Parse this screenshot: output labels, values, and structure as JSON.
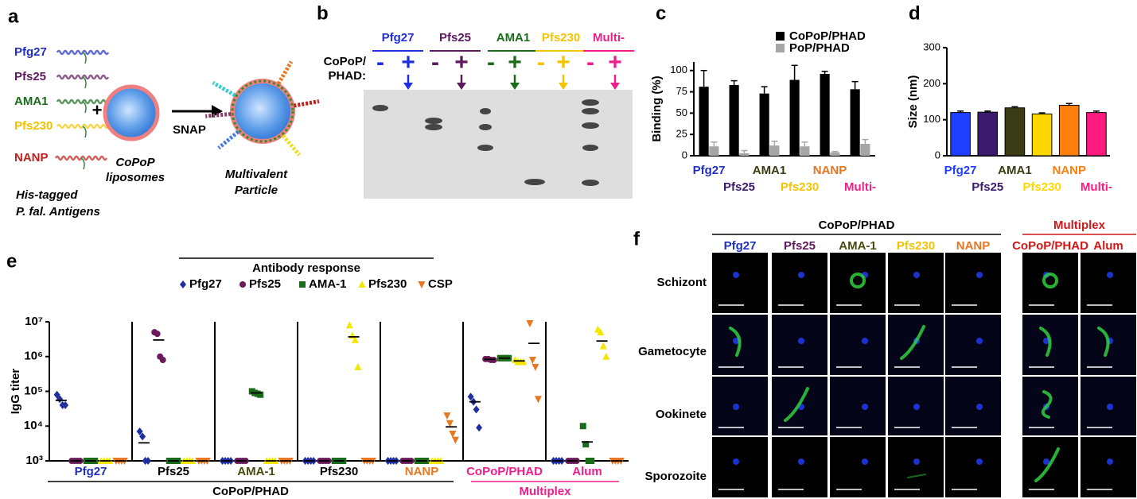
{
  "panel_a": {
    "letter": "a",
    "antigens": [
      "Pfg27",
      "Pfs25",
      "AMA1",
      "Pfs230",
      "NANP"
    ],
    "antigen_colors": [
      "#1f2fbf",
      "#5c1a5c",
      "#1a6b1a",
      "#f2c200",
      "#c0201a"
    ],
    "plus": "+",
    "liposome": [
      "CoPoP",
      "liposomes"
    ],
    "arrow_label": "SNAP",
    "particle": [
      "Multivalent",
      "Particle"
    ],
    "caption": [
      "His-tagged",
      "P. fal. Antigens"
    ]
  },
  "panel_b": {
    "letter": "b",
    "lanes": [
      "Pfg27",
      "Pfs25",
      "AMA1",
      "Pfs230",
      "Multi-"
    ],
    "lane_colors": [
      "#1f2fdf",
      "#5c1a5c",
      "#1a6b1a",
      "#f5c400",
      "#ee1e8c"
    ],
    "row_label": [
      "CoPoP/",
      "PHAD:"
    ],
    "signs": [
      "-",
      "+"
    ]
  },
  "panel_f": {
    "letter": "f",
    "groups": [
      {
        "title": "CoPoP/PHAD",
        "color": "#000000",
        "columns": [
          "Pfg27",
          "Pfs25",
          "AMA-1",
          "Pfs230",
          "NANP"
        ],
        "column_colors": [
          "#1f2fbf",
          "#5c1a5c",
          "#4a4a10",
          "#f2c200",
          "#e87722"
        ]
      },
      {
        "title": "Multiplex",
        "color": "#d01818",
        "columns": [
          "CoPoP/PHAD",
          "Alum"
        ],
        "column_colors": [
          "#d01818",
          "#d01818"
        ]
      }
    ],
    "rows": [
      "Schizont",
      "Gametocyte",
      "Ookinete",
      "Sporozoite"
    ]
  },
  "chart_data": [
    {
      "letter": "c",
      "type": "bar",
      "y_label": "Binding (%)",
      "categories": [
        "Pfg27",
        "Pfs25",
        "AMA1",
        "Pfs230",
        "NANP",
        "Multi-"
      ],
      "category_colors": [
        "#1f2fbf",
        "#3a1a6b",
        "#3b3b16",
        "#f5c400",
        "#e87722",
        "#ee1e8c"
      ],
      "series": [
        {
          "name": "CoPoP/PHAD",
          "color": "#000000",
          "values": [
            81,
            83,
            73,
            89,
            96,
            78
          ],
          "errors": [
            19,
            5,
            8,
            17,
            3,
            9
          ]
        },
        {
          "name": "PoP/PHAD",
          "color": "#a6a6a6",
          "values": [
            11,
            3,
            12,
            11,
            4,
            14
          ],
          "errors": [
            5,
            3,
            5,
            5,
            1,
            5
          ]
        }
      ],
      "ylim": [
        0,
        110
      ],
      "yticks": [
        0,
        25,
        50,
        75,
        100
      ]
    },
    {
      "letter": "d",
      "type": "bar",
      "y_label": "Size (nm)",
      "categories": [
        "Pfg27",
        "Pfs25",
        "AMA1",
        "Pfs230",
        "NANP",
        "Multi-"
      ],
      "colors": [
        "#1f3fff",
        "#3a1a6b",
        "#3b3b16",
        "#ffd700",
        "#ff7f0e",
        "#ff1a7f"
      ],
      "values": [
        120,
        121,
        133,
        116,
        140,
        120
      ],
      "errors": [
        4,
        3,
        3,
        3,
        5,
        4
      ],
      "ylim": [
        0,
        300
      ],
      "yticks": [
        0,
        100,
        200,
        300
      ]
    },
    {
      "letter": "e",
      "type": "strip",
      "legend_title": "Antibody response",
      "y_label": "IgG titer",
      "log_scale": true,
      "categories": [
        "Pfg27",
        "Pfs25",
        "AMA-1",
        "Pfs230",
        "NANP",
        "CoPoP/PHAD",
        "Alum"
      ],
      "category_colors": [
        "#1f2fbf",
        "#000000",
        "#4a4a10",
        "#000000",
        "#e87722",
        "#ee1e8c",
        "#ee1e8c"
      ],
      "category_groups": [
        {
          "label": "CoPoP/PHAD",
          "color": "#000000",
          "count": 5
        },
        {
          "label": "Multiplex",
          "color": "#ee1e8c",
          "count": 2
        }
      ],
      "ylim": [
        1000,
        10000000
      ],
      "yticks": [
        {
          "value": 1000,
          "label": "10³"
        },
        {
          "value": 10000,
          "label": "10⁴"
        },
        {
          "value": 100000,
          "label": "10⁵"
        },
        {
          "value": 1000000,
          "label": "10⁶"
        },
        {
          "value": 10000000,
          "label": "10⁷"
        }
      ],
      "series": [
        {
          "name": "Pfg27",
          "color": "#1f2f9f",
          "marker": "diamond",
          "values": [
            [
              80000,
              60000,
              40000,
              40000
            ],
            [
              7000,
              5000,
              1000,
              1000
            ],
            [
              1000,
              1000,
              1000,
              1000
            ],
            [
              1000,
              1000,
              1000,
              1000
            ],
            [
              1000,
              1000,
              1000,
              1000
            ],
            [
              70000,
              50000,
              30000,
              9000
            ],
            [
              1000,
              1000,
              1000,
              1000
            ]
          ],
          "means": [
            55000,
            3300,
            1000,
            1000,
            1000,
            50000,
            1000
          ]
        },
        {
          "name": "Pfs25",
          "color": "#6a1a5a",
          "marker": "circle",
          "values": [
            [
              1000,
              1000,
              1000,
              1000
            ],
            [
              5000000,
              4500000,
              1000000,
              800000
            ],
            [
              1000,
              1000,
              1000,
              1000
            ],
            [
              1000,
              1000,
              1000,
              1000
            ],
            [
              1000,
              1000,
              1000,
              1000
            ],
            [
              850000,
              850000,
              800000,
              800000
            ],
            [
              1000,
              1000,
              1000,
              1000
            ]
          ],
          "means": [
            1000,
            3000000,
            1000,
            1000,
            1000,
            830000,
            1000
          ]
        },
        {
          "name": "AMA-1",
          "color": "#1a6b1a",
          "marker": "square",
          "values": [
            [
              1000,
              1000,
              1000,
              1000
            ],
            [
              1000,
              1000,
              1000,
              1000
            ],
            [
              100000,
              90000,
              85000,
              80000
            ],
            [
              1000,
              1000,
              1000,
              1000
            ],
            [
              1000,
              1000,
              1000,
              1000
            ],
            [
              900000,
              900000,
              900000,
              900000
            ],
            [
              10000,
              3000,
              1000,
              1000
            ]
          ],
          "means": [
            1000,
            1000,
            90000,
            1000,
            1000,
            900000,
            3500
          ]
        },
        {
          "name": "Pfs230",
          "color": "#f5e600",
          "marker": "triangle",
          "values": [
            [
              1000,
              1000,
              1000,
              1000
            ],
            [
              1000,
              1000,
              1000,
              1000
            ],
            [
              1000,
              1000,
              1000,
              1000
            ],
            [
              8000000,
              4000000,
              3000000,
              500000
            ],
            [
              1000,
              1000,
              1000,
              1000
            ],
            [
              800000,
              700000,
              700000,
              700000
            ],
            [
              6000000,
              5000000,
              2000000,
              1000000
            ]
          ],
          "means": [
            1000,
            1000,
            1000,
            3700000,
            1000,
            750000,
            2800000
          ]
        },
        {
          "name": "CSP",
          "color": "#e87722",
          "marker": "triangle-down",
          "values": [
            [
              1000,
              1000,
              1000,
              1000
            ],
            [
              1000,
              1000,
              1000,
              1000
            ],
            [
              1000,
              1000,
              1000,
              1000
            ],
            [
              1000,
              1000,
              1000,
              1000
            ],
            [
              20000,
              12000,
              6000,
              4000
            ],
            [
              9000000,
              800000,
              500000,
              60000
            ],
            [
              1000,
              1000,
              1000,
              1000
            ]
          ],
          "means": [
            1000,
            1000,
            1000,
            1000,
            9500,
            2400000,
            1000
          ]
        }
      ]
    }
  ]
}
